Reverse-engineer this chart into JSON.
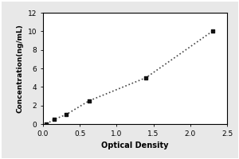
{
  "x_data": [
    0.045,
    0.15,
    0.31,
    0.625,
    1.4,
    2.3
  ],
  "y_data": [
    0.0,
    0.5,
    1.0,
    2.5,
    5.0,
    10.0
  ],
  "xlabel": "Optical Density",
  "ylabel": "Concentration(ng/mL)",
  "xlim": [
    0,
    2.5
  ],
  "ylim": [
    0,
    12
  ],
  "xticks": [
    0,
    0.5,
    1,
    1.5,
    2,
    2.5
  ],
  "yticks": [
    0,
    2,
    4,
    6,
    8,
    10,
    12
  ],
  "line_color": "#444444",
  "marker_color": "#111111",
  "background_color": "#e8e8e8",
  "plot_bg_color": "#ffffff",
  "marker": "s",
  "marker_size": 3,
  "line_style": ":",
  "line_width": 1.2,
  "xlabel_fontsize": 7,
  "ylabel_fontsize": 6.5,
  "tick_fontsize": 6.5,
  "border_color": "#000000"
}
